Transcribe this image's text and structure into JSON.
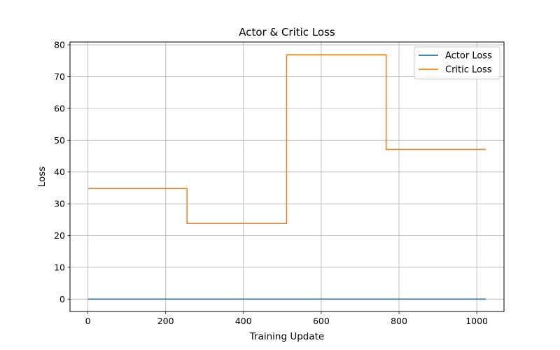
{
  "chart_data": {
    "type": "line",
    "title": "Actor & Critic Loss",
    "xlabel": "Training Update",
    "ylabel": "Loss",
    "xlim": [
      -46,
      1070
    ],
    "ylim": [
      -3.9,
      80.9
    ],
    "x_ticks": [
      "0",
      "200",
      "400",
      "600",
      "800",
      "1000"
    ],
    "y_ticks": [
      "0",
      "10",
      "20",
      "30",
      "40",
      "50",
      "60",
      "70",
      "80"
    ],
    "grid": true,
    "legend_position": "top-right",
    "series": [
      {
        "name": "Actor Loss",
        "color": "#1f77b4",
        "step": true,
        "x": [
          0,
          1023
        ],
        "y": [
          0,
          0
        ]
      },
      {
        "name": "Critic Loss",
        "color": "#ff7f0e",
        "step": true,
        "x": [
          0,
          255,
          511,
          767,
          1023
        ],
        "y": [
          34.8,
          23.8,
          76.9,
          47.1,
          47.1
        ]
      }
    ]
  }
}
